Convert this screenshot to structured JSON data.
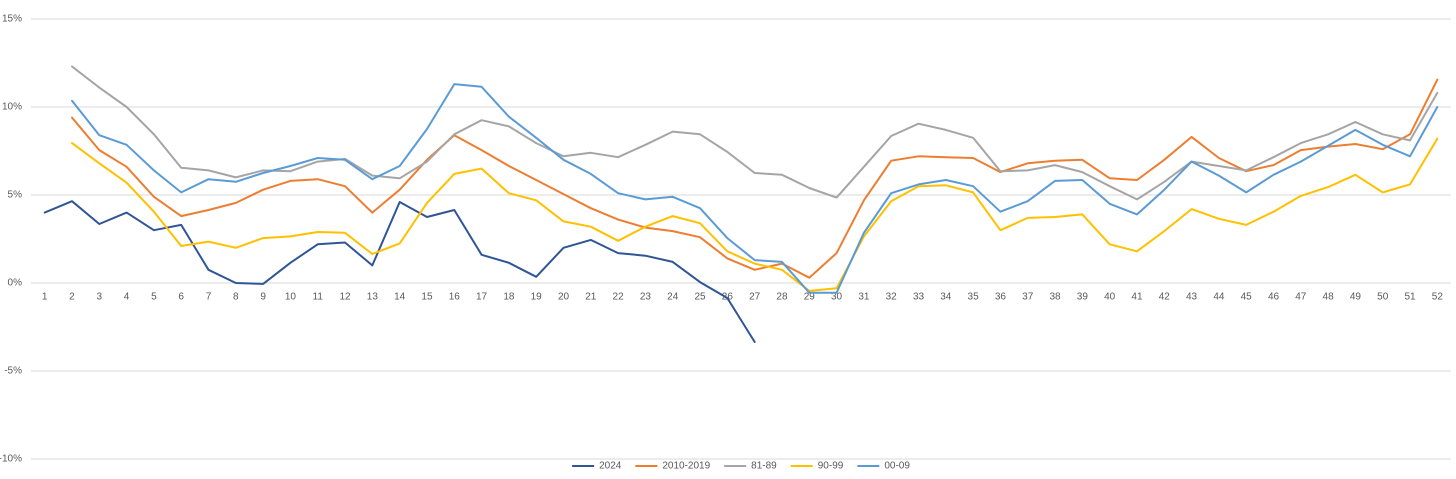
{
  "chart_data": {
    "type": "line",
    "categories": [
      "1",
      "2",
      "3",
      "4",
      "5",
      "6",
      "7",
      "8",
      "9",
      "10",
      "11",
      "12",
      "13",
      "14",
      "15",
      "16",
      "17",
      "18",
      "19",
      "20",
      "21",
      "22",
      "23",
      "24",
      "25",
      "26",
      "27",
      "28",
      "29",
      "30",
      "31",
      "32",
      "33",
      "34",
      "35",
      "36",
      "37",
      "38",
      "39",
      "40",
      "41",
      "42",
      "43",
      "44",
      "45",
      "46",
      "47",
      "48",
      "49",
      "50",
      "51",
      "52"
    ],
    "ylim": [
      -10,
      15
    ],
    "yticks": [
      {
        "value": -10,
        "label": "-10%"
      },
      {
        "value": -5,
        "label": "-5%"
      },
      {
        "value": 0,
        "label": "0%"
      },
      {
        "value": 5,
        "label": "5%"
      },
      {
        "value": 10,
        "label": "10%"
      },
      {
        "value": 15,
        "label": "15%"
      }
    ],
    "grid": true,
    "legend": "bottom",
    "series": [
      {
        "name": "2024",
        "color": "#2f5597",
        "values": [
          4.0,
          4.65,
          3.35,
          4.0,
          3.0,
          3.3,
          0.75,
          0.0,
          -0.05,
          1.15,
          2.2,
          2.3,
          1.0,
          4.6,
          3.75,
          4.15,
          1.6,
          1.15,
          0.35,
          2.0,
          2.45,
          1.7,
          1.55,
          1.2,
          0.05,
          -0.85,
          -3.35,
          null,
          null,
          null,
          null,
          null,
          null,
          null,
          null,
          null,
          null,
          null,
          null,
          null,
          null,
          null,
          null,
          null,
          null,
          null,
          null,
          null,
          null,
          null,
          null,
          null
        ]
      },
      {
        "name": "2010-2019",
        "color": "#ed7d31",
        "values": [
          null,
          9.4,
          7.55,
          6.6,
          4.9,
          3.8,
          4.15,
          4.55,
          5.3,
          5.8,
          5.9,
          5.5,
          4.0,
          5.3,
          7.0,
          8.4,
          7.55,
          6.65,
          5.85,
          5.05,
          4.25,
          3.6,
          3.15,
          2.95,
          2.6,
          1.4,
          0.75,
          1.1,
          0.3,
          1.7,
          4.7,
          6.95,
          7.2,
          7.15,
          7.1,
          6.3,
          6.8,
          6.95,
          7.0,
          5.95,
          5.85,
          7.0,
          8.3,
          7.1,
          6.35,
          6.7,
          7.55,
          7.75,
          7.9,
          7.6,
          8.45,
          11.55
        ]
      },
      {
        "name": "81-89",
        "color": "#a5a5a5",
        "values": [
          null,
          12.3,
          11.1,
          10.0,
          8.45,
          6.55,
          6.4,
          6.0,
          6.4,
          6.35,
          6.9,
          7.05,
          6.1,
          5.95,
          6.9,
          8.45,
          9.25,
          8.9,
          7.95,
          7.2,
          7.4,
          7.15,
          7.85,
          8.6,
          8.45,
          7.45,
          6.25,
          6.15,
          5.4,
          4.85,
          6.6,
          8.35,
          9.05,
          8.7,
          8.25,
          6.35,
          6.4,
          6.7,
          6.3,
          5.5,
          4.75,
          5.75,
          6.9,
          6.65,
          6.4,
          7.15,
          7.95,
          8.45,
          9.15,
          8.45,
          8.1,
          10.8
        ]
      },
      {
        "name": "90-99",
        "color": "#ffc000",
        "values": [
          null,
          7.95,
          6.8,
          5.7,
          4.05,
          2.1,
          2.35,
          2.0,
          2.55,
          2.65,
          2.9,
          2.85,
          1.65,
          2.25,
          4.55,
          6.2,
          6.5,
          5.1,
          4.7,
          3.5,
          3.2,
          2.4,
          3.2,
          3.8,
          3.4,
          1.8,
          1.1,
          0.75,
          -0.45,
          -0.3,
          2.65,
          4.65,
          5.5,
          5.55,
          5.15,
          3.0,
          3.7,
          3.75,
          3.9,
          2.2,
          1.8,
          2.95,
          4.2,
          3.65,
          3.3,
          4.05,
          4.95,
          5.45,
          6.15,
          5.15,
          5.6,
          8.2
        ]
      },
      {
        "name": "00-09",
        "color": "#5b9bd5",
        "values": [
          null,
          10.35,
          8.4,
          7.85,
          6.4,
          5.15,
          5.9,
          5.75,
          6.25,
          6.65,
          7.1,
          7.0,
          5.9,
          6.65,
          8.75,
          11.3,
          11.15,
          9.45,
          8.25,
          7.0,
          6.2,
          5.1,
          4.75,
          4.9,
          4.25,
          2.55,
          1.3,
          1.2,
          -0.55,
          -0.55,
          2.85,
          5.1,
          5.6,
          5.85,
          5.5,
          4.05,
          4.65,
          5.8,
          5.85,
          4.5,
          3.9,
          5.3,
          6.9,
          6.1,
          5.15,
          6.15,
          6.9,
          7.8,
          8.7,
          7.85,
          7.2,
          10.0
        ]
      }
    ]
  }
}
